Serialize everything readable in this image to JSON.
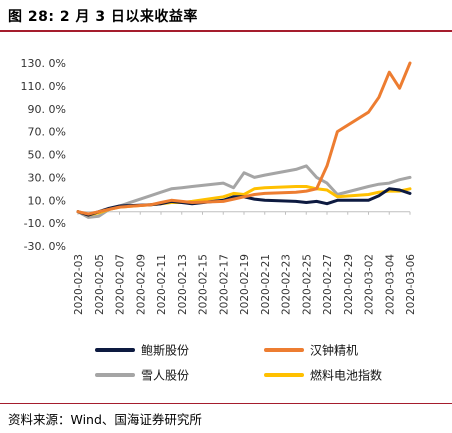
{
  "header": {
    "title": "图 28:  2 月 3 日以来收益率"
  },
  "footer": {
    "source": "资料来源：Wind、国海证券研究所"
  },
  "chart_data": {
    "type": "line",
    "title": "",
    "xlabel": "",
    "ylabel": "",
    "ylim": [
      -30,
      130
    ],
    "y_ticks": [
      -30,
      -10,
      10,
      30,
      50,
      70,
      90,
      110,
      130
    ],
    "y_tick_labels": [
      "-30. 0%",
      "-10. 0%",
      "10. 0%",
      "30. 0%",
      "50. 0%",
      "70. 0%",
      "90. 0%",
      "110. 0%",
      "130. 0%"
    ],
    "grid": false,
    "legend_position": "bottom",
    "x_tick_labels": [
      "2020-02-03",
      "2020-02-05",
      "2020-02-07",
      "2020-02-09",
      "2020-02-11",
      "2020-02-13",
      "2020-02-15",
      "2020-02-17",
      "2020-02-19",
      "2020-02-21",
      "2020-02-23",
      "2020-02-25",
      "2020-02-27",
      "2020-02-29",
      "2020-03-02",
      "2020-03-04",
      "2020-03-06"
    ],
    "x": [
      "2020-02-03",
      "2020-02-04",
      "2020-02-05",
      "2020-02-06",
      "2020-02-07",
      "2020-02-10",
      "2020-02-11",
      "2020-02-12",
      "2020-02-13",
      "2020-02-14",
      "2020-02-17",
      "2020-02-18",
      "2020-02-19",
      "2020-02-20",
      "2020-02-21",
      "2020-02-24",
      "2020-02-25",
      "2020-02-26",
      "2020-02-27",
      "2020-02-28",
      "2020-03-02",
      "2020-03-03",
      "2020-03-04",
      "2020-03-05",
      "2020-03-06"
    ],
    "series": [
      {
        "name": "鲍斯股份",
        "color": "#0d1a40",
        "values": [
          0,
          -3,
          0,
          3,
          5,
          6,
          7,
          9,
          8,
          7,
          10,
          13,
          13,
          11,
          10,
          9,
          8,
          9,
          7,
          10,
          10,
          14,
          20,
          19,
          16
        ]
      },
      {
        "name": "汉钟精机",
        "color": "#ed7d31",
        "values": [
          0,
          -2,
          0,
          2,
          4,
          6,
          8,
          10,
          9,
          8,
          9,
          11,
          13,
          15,
          16,
          17,
          18,
          20,
          40,
          70,
          87,
          100,
          122,
          108,
          130
        ]
      },
      {
        "name": "雪人股份",
        "color": "#a5a5a5",
        "values": [
          0,
          -5,
          -4,
          2,
          5,
          14,
          17,
          20,
          21,
          22,
          25,
          21,
          34,
          30,
          32,
          37,
          40,
          30,
          25,
          15,
          22,
          24,
          25,
          28,
          30
        ]
      },
      {
        "name": "燃料电池指数",
        "color": "#ffc000",
        "values": [
          0,
          -3,
          -1,
          2,
          4,
          6,
          7,
          8,
          8,
          9,
          13,
          16,
          15,
          20,
          21,
          22,
          22,
          20,
          19,
          13,
          15,
          17,
          18,
          18,
          20
        ]
      }
    ]
  }
}
